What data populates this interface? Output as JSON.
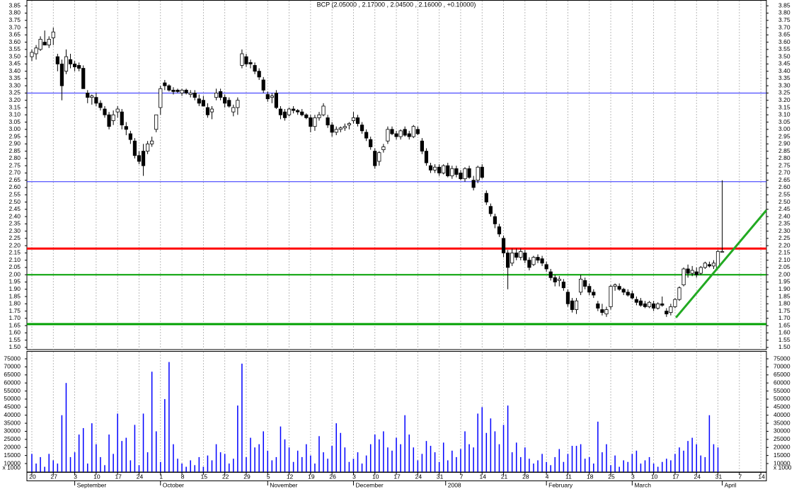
{
  "chart_data": {
    "type": "candlestick",
    "title": "BCP (2.05000 , 2.17000 , 2.04500 , 2.16000 , +0.10000)",
    "xlim": [
      -1.155,
      171.3
    ],
    "xticks": [
      {
        "value": 0,
        "label": "20"
      },
      {
        "value": 5,
        "label": "27"
      },
      {
        "value": 10,
        "label": "3"
      },
      {
        "value": 15,
        "label": "10"
      },
      {
        "value": 20,
        "label": "17"
      },
      {
        "value": 25,
        "label": "24"
      },
      {
        "value": 30,
        "label": "1"
      },
      {
        "value": 35,
        "label": "8"
      },
      {
        "value": 40,
        "label": "15"
      },
      {
        "value": 45,
        "label": "22"
      },
      {
        "value": 50,
        "label": "29"
      },
      {
        "value": 55,
        "label": "5"
      },
      {
        "value": 60,
        "label": "12"
      },
      {
        "value": 65,
        "label": "19"
      },
      {
        "value": 70,
        "label": "26"
      },
      {
        "value": 75,
        "label": "3"
      },
      {
        "value": 80,
        "label": "10"
      },
      {
        "value": 85,
        "label": "17"
      },
      {
        "value": 90,
        "label": "24"
      },
      {
        "value": 95,
        "label": "31"
      },
      {
        "value": 100,
        "label": "7"
      },
      {
        "value": 105,
        "label": "14"
      },
      {
        "value": 110,
        "label": "21"
      },
      {
        "value": 115,
        "label": "28"
      },
      {
        "value": 120,
        "label": "4"
      },
      {
        "value": 125,
        "label": "11"
      },
      {
        "value": 130,
        "label": "18"
      },
      {
        "value": 135,
        "label": "25"
      },
      {
        "value": 140,
        "label": "3"
      },
      {
        "value": 145,
        "label": "10"
      },
      {
        "value": 150,
        "label": "17"
      },
      {
        "value": 155,
        "label": "24"
      },
      {
        "value": 160,
        "label": "31"
      },
      {
        "value": 165,
        "label": "7"
      },
      {
        "value": 170,
        "label": "14"
      }
    ],
    "month_ticks": [
      {
        "value": 10,
        "label": "September"
      },
      {
        "value": 30,
        "label": "October"
      },
      {
        "value": 55,
        "label": "November"
      },
      {
        "value": 75,
        "label": "December"
      },
      {
        "value": 96.5,
        "label": "2008"
      },
      {
        "value": 120,
        "label": "February"
      },
      {
        "value": 140,
        "label": "March"
      },
      {
        "value": 161,
        "label": "April"
      }
    ],
    "ylim": [
      1.485,
      3.89
    ],
    "yticks": [
      {
        "value": 1.5,
        "label": "1.50"
      },
      1.55,
      {
        "value": 1.6,
        "label": "1.60"
      },
      1.65,
      {
        "value": 1.7,
        "label": "1.70"
      },
      1.75,
      {
        "value": 1.8,
        "label": "1.80"
      },
      1.85,
      {
        "value": 1.9,
        "label": "1.90"
      },
      1.95,
      {
        "value": 2,
        "label": "2.00"
      },
      2.05,
      {
        "value": 2.1,
        "label": "2.10"
      },
      2.15,
      {
        "value": 2.2,
        "label": "2.20"
      },
      2.25,
      {
        "value": 2.3,
        "label": "2.30"
      },
      2.35,
      {
        "value": 2.4,
        "label": "2.40"
      },
      2.45,
      {
        "value": 2.5,
        "label": "2.50"
      },
      2.55,
      {
        "value": 2.6,
        "label": "2.60"
      },
      2.65,
      {
        "value": 2.7,
        "label": "2.70"
      },
      2.75,
      {
        "value": 2.8,
        "label": "2.80"
      },
      2.85,
      {
        "value": 2.9,
        "label": "2.90"
      },
      2.95,
      {
        "value": 3,
        "label": "3.00"
      },
      3.05,
      {
        "value": 3.1,
        "label": "3.10"
      },
      3.15,
      {
        "value": 3.2,
        "label": "3.20"
      },
      3.25,
      {
        "value": 3.3,
        "label": "3.30"
      },
      3.35,
      {
        "value": 3.4,
        "label": "3.40"
      },
      3.45,
      {
        "value": 3.5,
        "label": "3.50"
      },
      3.55,
      {
        "value": 3.6,
        "label": "3.60"
      },
      3.65,
      {
        "value": 3.7,
        "label": "3.70"
      },
      3.75,
      {
        "value": 3.8,
        "label": "3.80"
      },
      3.85
    ],
    "grid": true,
    "candle_color": "#000000",
    "open": [
      3.5,
      3.52,
      3.55,
      3.6,
      3.58,
      3.63,
      3.5,
      3.45,
      3.4,
      3.48,
      3.45,
      3.44,
      3.42,
      3.25,
      3.22,
      3.22,
      3.18,
      3.14,
      3.1,
      3.06,
      3.12,
      3.12,
      3.02,
      2.97,
      2.92,
      2.82,
      2.85,
      2.85,
      2.9,
      3.0,
      3.15,
      3.32,
      3.3,
      3.27,
      3.27,
      3.25,
      3.27,
      3.24,
      3.25,
      3.21,
      3.2,
      3.15,
      3.12,
      3.22,
      3.26,
      3.22,
      3.2,
      3.12,
      3.15,
      3.44,
      3.5,
      3.46,
      3.44,
      3.4,
      3.34,
      3.24,
      3.22,
      3.25,
      3.14,
      3.12,
      3.1,
      3.14,
      3.13,
      3.12,
      3.1,
      3.08,
      3.02,
      3.08,
      3.1,
      3.08,
      3.03,
      2.98,
      3.0,
      3.01,
      3.03,
      3.06,
      3.08,
      3.03,
      2.98,
      2.93,
      2.85,
      2.78,
      2.86,
      2.92,
      3.0,
      2.97,
      2.95,
      3.0,
      2.97,
      2.95,
      3.0,
      2.92,
      2.85,
      2.75,
      2.72,
      2.74,
      2.7,
      2.75,
      2.68,
      2.73,
      2.7,
      2.66,
      2.73,
      2.65,
      2.65,
      2.74,
      2.56,
      2.47,
      2.4,
      2.33,
      2.25,
      2.15,
      2.08,
      2.15,
      2.12,
      2.15,
      2.1,
      2.07,
      2.12,
      2.11,
      2.07,
      2.02,
      1.98,
      1.96,
      1.95,
      1.88,
      1.82,
      1.76,
      1.88,
      1.96,
      1.92,
      1.88,
      1.8,
      1.76,
      1.73,
      1.78,
      1.92,
      1.92,
      1.9,
      1.88,
      1.87,
      1.83,
      1.82,
      1.8,
      1.78,
      1.8,
      1.77,
      1.8,
      1.75,
      1.74,
      1.78,
      1.83,
      1.93,
      2.04,
      2.01,
      2.02,
      2.01,
      2.05,
      2.07,
      2.06,
      2.05,
      2.16
    ],
    "high": [
      3.55,
      3.58,
      3.64,
      3.68,
      3.64,
      3.7,
      3.52,
      3.48,
      3.55,
      3.52,
      3.47,
      3.46,
      3.44,
      3.27,
      3.24,
      3.25,
      3.2,
      3.16,
      3.12,
      3.13,
      3.16,
      3.14,
      3.05,
      2.99,
      2.94,
      2.85,
      2.9,
      2.92,
      2.95,
      3.1,
      3.3,
      3.34,
      3.31,
      3.29,
      3.28,
      3.28,
      3.28,
      3.27,
      3.27,
      3.24,
      3.23,
      3.18,
      3.16,
      3.28,
      3.28,
      3.24,
      3.22,
      3.17,
      3.22,
      3.55,
      3.52,
      3.48,
      3.46,
      3.42,
      3.36,
      3.26,
      3.25,
      3.27,
      3.16,
      3.14,
      3.15,
      3.16,
      3.14,
      3.14,
      3.11,
      3.1,
      3.1,
      3.12,
      3.18,
      3.1,
      3.05,
      3.02,
      3.02,
      3.04,
      3.05,
      3.12,
      3.1,
      3.05,
      3.0,
      2.95,
      2.87,
      2.85,
      2.9,
      3.02,
      3.02,
      2.99,
      3.0,
      3.02,
      2.99,
      3.03,
      3.02,
      2.94,
      2.87,
      2.77,
      2.76,
      2.76,
      2.76,
      2.77,
      2.75,
      2.75,
      2.72,
      2.74,
      2.75,
      2.68,
      2.75,
      2.76,
      2.58,
      2.49,
      2.42,
      2.35,
      2.27,
      2.17,
      2.18,
      2.18,
      2.18,
      2.17,
      2.12,
      2.13,
      2.14,
      2.13,
      2.09,
      2.04,
      2.0,
      1.99,
      1.97,
      1.9,
      1.84,
      1.84,
      2.0,
      1.98,
      1.94,
      1.9,
      1.82,
      1.8,
      1.78,
      1.93,
      1.94,
      1.94,
      1.91,
      1.9,
      1.89,
      1.85,
      1.84,
      1.82,
      1.82,
      1.82,
      1.81,
      1.85,
      1.77,
      1.8,
      1.84,
      1.92,
      2.05,
      2.07,
      2.06,
      2.05,
      2.06,
      2.09,
      2.09,
      2.1,
      2.17,
      2.65
    ],
    "low": [
      3.47,
      3.48,
      3.54,
      3.58,
      3.56,
      3.58,
      3.4,
      3.2,
      3.38,
      3.42,
      3.4,
      3.4,
      3.28,
      3.18,
      3.17,
      3.16,
      3.13,
      3.08,
      3.0,
      3.03,
      3.08,
      3.0,
      2.96,
      2.9,
      2.8,
      2.76,
      2.68,
      2.83,
      2.88,
      2.98,
      3.1,
      3.27,
      3.26,
      3.24,
      3.25,
      3.23,
      3.24,
      3.22,
      3.2,
      3.16,
      3.16,
      3.08,
      3.07,
      3.2,
      3.2,
      3.15,
      3.15,
      3.09,
      3.1,
      3.42,
      3.43,
      3.42,
      3.38,
      3.34,
      3.25,
      3.19,
      3.18,
      3.14,
      3.07,
      3.06,
      3.09,
      3.11,
      3.1,
      3.09,
      3.07,
      2.98,
      2.99,
      3.06,
      3.09,
      3.01,
      2.95,
      2.96,
      2.98,
      2.99,
      3.0,
      3.04,
      3.02,
      2.97,
      2.92,
      2.86,
      2.73,
      2.75,
      2.84,
      2.9,
      2.96,
      2.93,
      2.93,
      2.95,
      2.93,
      2.94,
      2.96,
      2.83,
      2.75,
      2.7,
      2.7,
      2.68,
      2.69,
      2.67,
      2.66,
      2.67,
      2.65,
      2.64,
      2.66,
      2.58,
      2.63,
      2.66,
      2.48,
      2.4,
      2.32,
      2.26,
      2.12,
      1.9,
      2.06,
      2.1,
      2.1,
      2.08,
      2.03,
      2.06,
      2.08,
      2.06,
      2.02,
      1.96,
      1.92,
      1.92,
      1.89,
      1.78,
      1.74,
      1.73,
      1.86,
      1.9,
      1.86,
      1.84,
      1.75,
      1.72,
      1.71,
      1.76,
      1.89,
      1.89,
      1.86,
      1.85,
      1.83,
      1.79,
      1.78,
      1.77,
      1.77,
      1.75,
      1.76,
      1.78,
      1.71,
      1.72,
      1.77,
      1.82,
      1.92,
      1.98,
      1.99,
      1.98,
      2.0,
      2.04,
      2.05,
      2.04,
      2.045,
      2.16
    ],
    "close": [
      3.53,
      3.56,
      3.62,
      3.58,
      3.62,
      3.67,
      3.45,
      3.3,
      3.5,
      3.45,
      3.43,
      3.42,
      3.28,
      3.22,
      3.23,
      3.18,
      3.15,
      3.1,
      3.02,
      3.1,
      3.14,
      3.03,
      3.0,
      2.93,
      2.82,
      2.78,
      2.75,
      2.9,
      2.92,
      3.1,
      3.28,
      3.3,
      3.27,
      3.26,
      3.26,
      3.27,
      3.25,
      3.25,
      3.22,
      3.18,
      3.16,
      3.1,
      3.14,
      3.25,
      3.22,
      3.18,
      3.16,
      3.15,
      3.2,
      3.52,
      3.45,
      3.45,
      3.4,
      3.36,
      3.27,
      3.21,
      3.23,
      3.15,
      3.1,
      3.08,
      3.14,
      3.13,
      3.12,
      3.1,
      3.08,
      3.02,
      3.08,
      3.1,
      3.16,
      3.03,
      2.98,
      3.0,
      3.01,
      3.02,
      3.04,
      3.08,
      3.04,
      2.99,
      2.94,
      2.88,
      2.75,
      2.84,
      2.88,
      3.0,
      2.97,
      2.95,
      2.99,
      2.96,
      2.95,
      3.02,
      2.97,
      2.85,
      2.77,
      2.72,
      2.74,
      2.7,
      2.75,
      2.68,
      2.73,
      2.69,
      2.66,
      2.73,
      2.67,
      2.6,
      2.74,
      2.67,
      2.5,
      2.42,
      2.35,
      2.28,
      2.15,
      2.05,
      2.15,
      2.12,
      2.16,
      2.1,
      2.05,
      2.12,
      2.1,
      2.08,
      2.04,
      1.98,
      1.95,
      1.97,
      1.91,
      1.8,
      1.76,
      1.82,
      1.97,
      1.92,
      1.88,
      1.86,
      1.77,
      1.74,
      1.76,
      1.92,
      1.93,
      1.9,
      1.88,
      1.86,
      1.84,
      1.81,
      1.79,
      1.78,
      1.81,
      1.77,
      1.8,
      1.79,
      1.73,
      1.78,
      1.83,
      1.91,
      2.04,
      2.01,
      2.03,
      2.0,
      2.05,
      2.08,
      2.06,
      2.08,
      2.16,
      2.16
    ],
    "volume": [
      16000,
      10000,
      14000,
      8000,
      16000,
      12000,
      10000,
      40000,
      60000,
      14000,
      17000,
      28000,
      32000,
      10000,
      35000,
      22000,
      14000,
      9000,
      28000,
      16000,
      41000,
      24000,
      26000,
      12000,
      34000,
      9000,
      41000,
      17000,
      67000,
      30000,
      11000,
      50000,
      73000,
      22000,
      13000,
      10000,
      8000,
      12000,
      9000,
      14000,
      8000,
      15000,
      12000,
      22000,
      17000,
      16000,
      10000,
      13000,
      46000,
      72000,
      14000,
      26000,
      20000,
      22000,
      30000,
      18000,
      12000,
      14000,
      33000,
      25000,
      20000,
      11000,
      18000,
      14000,
      22000,
      15000,
      10000,
      27000,
      17000,
      13000,
      21000,
      35000,
      29000,
      20000,
      11000,
      13000,
      17000,
      10000,
      15000,
      22000,
      28000,
      25000,
      30000,
      20000,
      18000,
      26000,
      22000,
      40000,
      28000,
      20000,
      12000,
      16000,
      24000,
      21000,
      17000,
      11000,
      23000,
      12000,
      18000,
      14000,
      19000,
      30000,
      22000,
      20000,
      41000,
      45000,
      29000,
      38000,
      30000,
      22000,
      34000,
      46000,
      17000,
      23000,
      14000,
      20000,
      13000,
      10000,
      12000,
      16000,
      11000,
      9000,
      14000,
      19000,
      11000,
      16000,
      21000,
      21000,
      22000,
      13000,
      14000,
      10000,
      36000,
      17000,
      22000,
      9000,
      15000,
      8000,
      12000,
      11000,
      16000,
      18000,
      10000,
      12000,
      14000,
      10000,
      8000,
      11000,
      13000,
      12000,
      16000,
      20000,
      18000,
      24000,
      26000,
      22000,
      15000,
      14000,
      40000,
      22000,
      20000,
      null
    ],
    "volume_color": "#0000ff",
    "volume_ylim": [
      4740,
      79400
    ],
    "volume_yticks": [
      10000,
      15000,
      20000,
      25000,
      30000,
      35000,
      40000,
      45000,
      50000,
      55000,
      60000,
      65000,
      70000,
      75000
    ],
    "volume_unit": "x 1000",
    "hlines": [
      {
        "value": 3.25,
        "color": "#2a2aff",
        "style": "thin"
      },
      {
        "value": 2.64,
        "color": "#2a2aff",
        "style": "thin"
      },
      {
        "value": 2.18,
        "color": "#ff0000",
        "style": "thick"
      },
      {
        "value": 2.0,
        "color": "#00a000",
        "style": "medium"
      },
      {
        "value": 1.66,
        "color": "#00a000",
        "style": "thick"
      }
    ],
    "trendline": {
      "x": [
        150.2,
        171.3
      ],
      "y": [
        1.705,
        2.444
      ],
      "color": "#22aa22"
    }
  }
}
